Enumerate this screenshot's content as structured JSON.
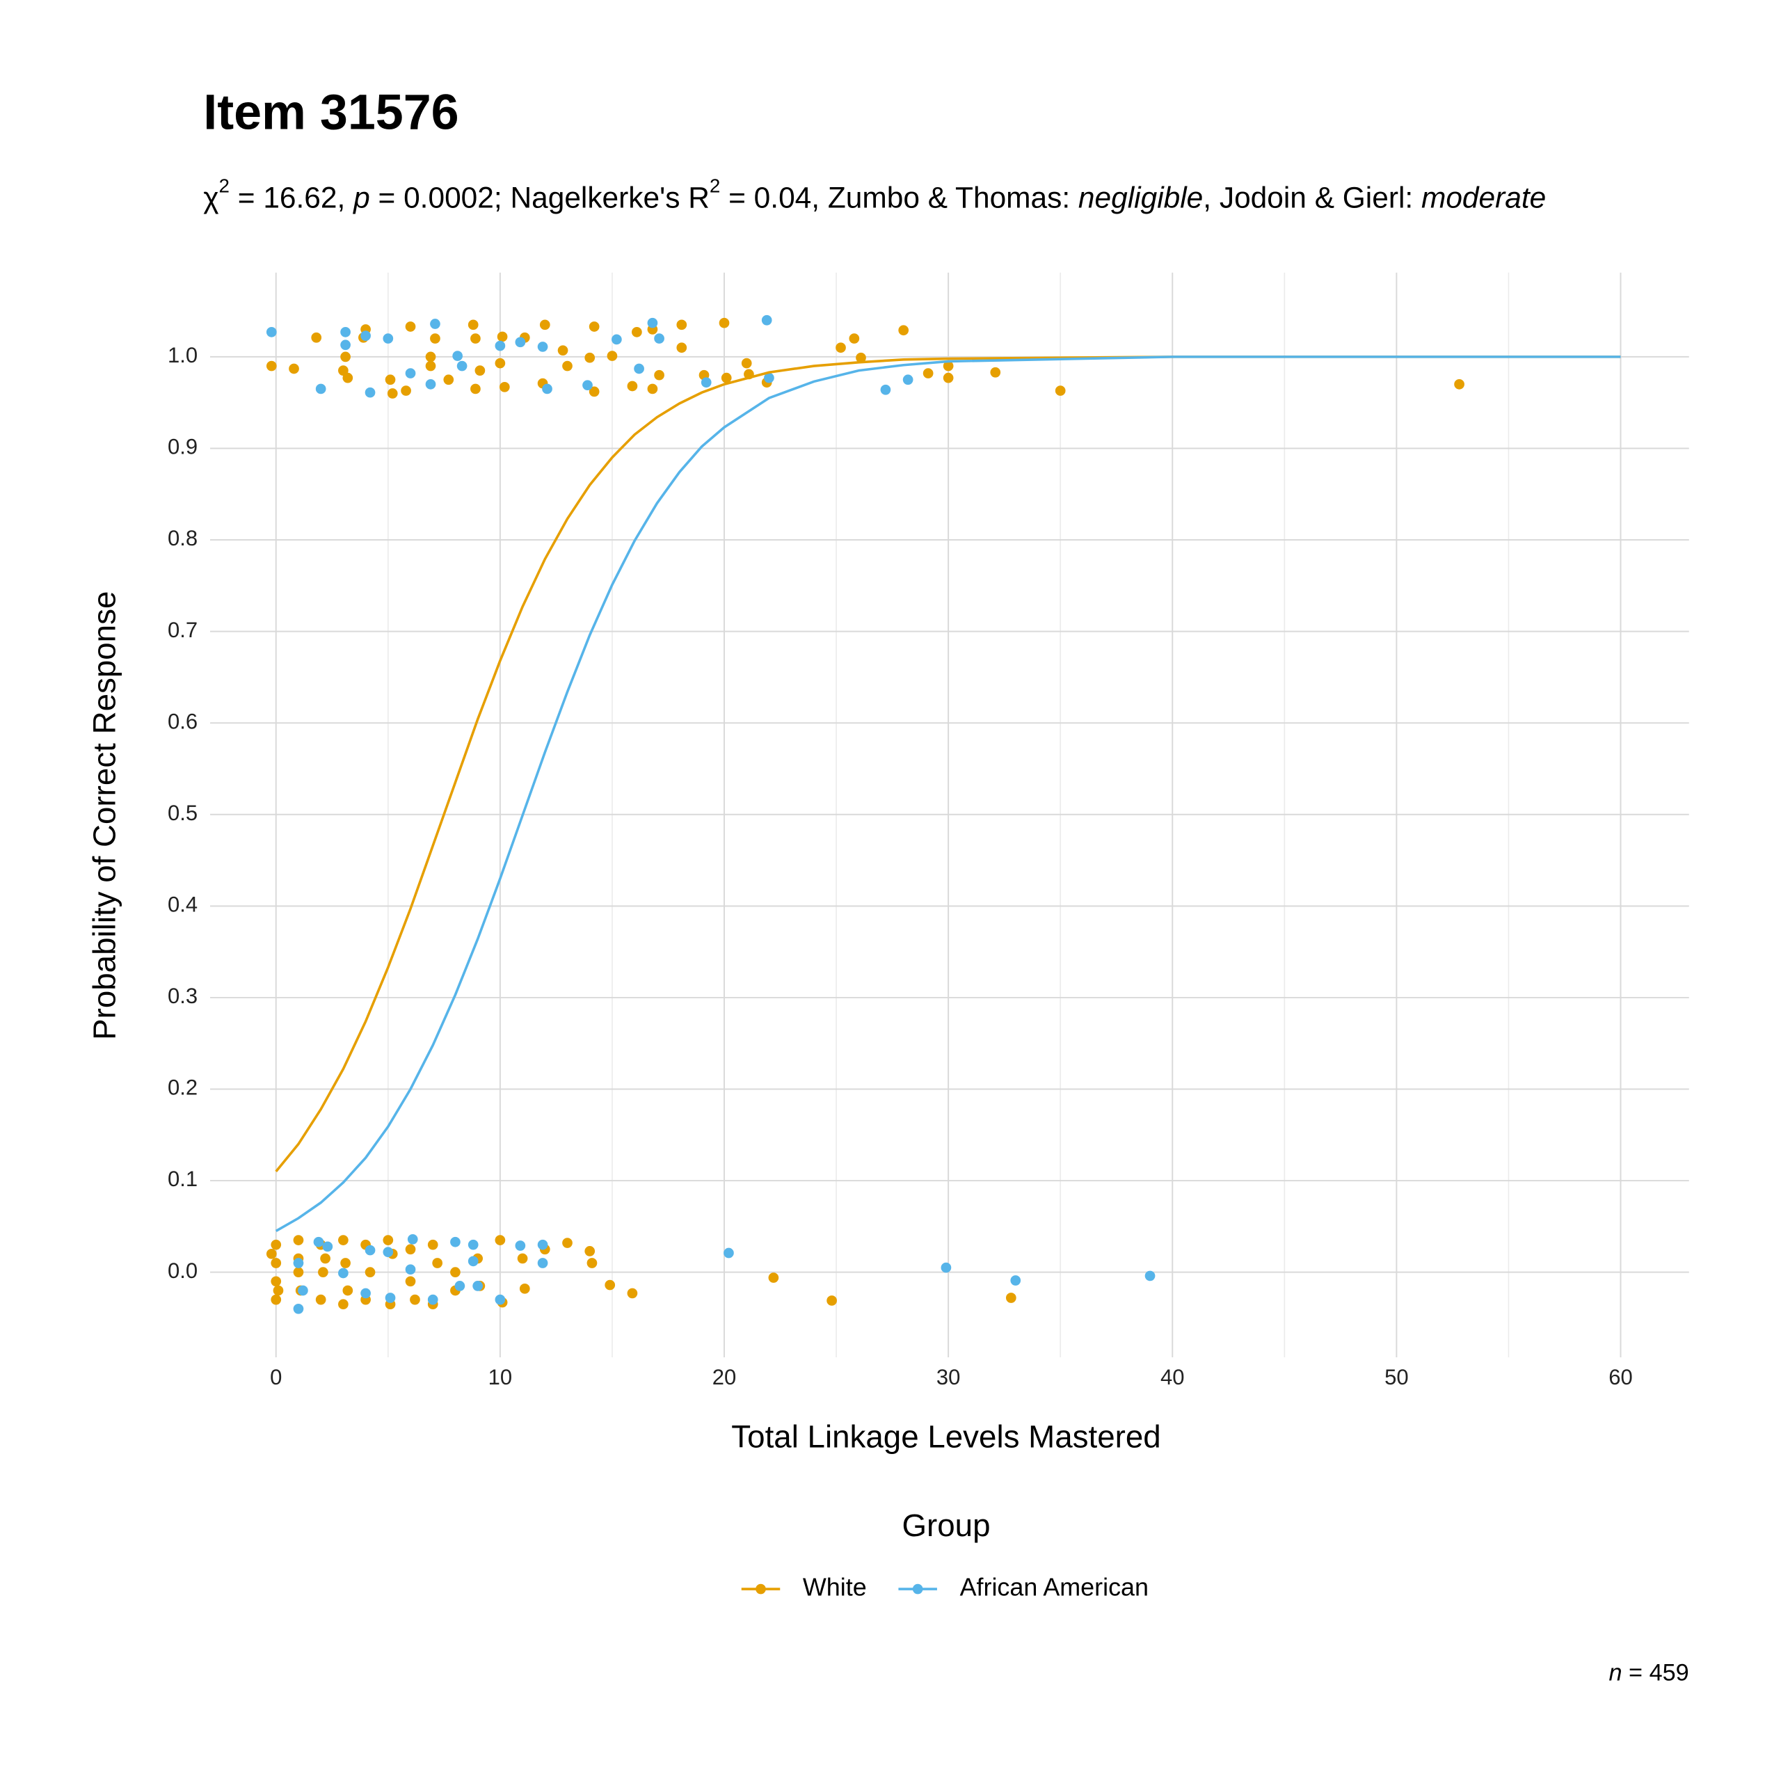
{
  "chart_data": {
    "type": "scatter",
    "title": "Item 31576",
    "subtitle_parts": [
      "χ",
      "2",
      " = 16.62, ",
      "p",
      " = 0.0002; Nagelkerke's R",
      "2",
      " = 0.04, Zumbo & Thomas: ",
      "negligible",
      ", Jodoin & Gierl: ",
      "moderate"
    ],
    "x_label": "Total Linkage Levels Mastered",
    "y_label": "Probability of Correct Response",
    "legend_title": "Group",
    "legend_position": "bottom",
    "caption_parts": [
      "n",
      " = 459"
    ],
    "grid": true,
    "xlim": [
      -2.94,
      63.05
    ],
    "ylim": [
      -0.093,
      1.092
    ],
    "xticks": [
      0,
      10,
      20,
      30,
      40,
      50,
      60
    ],
    "x_minor_ticks": [
      5,
      15,
      25,
      35,
      45,
      55
    ],
    "yticks": [
      {
        "value": 0,
        "label": "0.0"
      },
      0.1,
      0.2,
      0.3,
      0.4,
      0.5,
      0.6,
      0.7,
      0.8,
      0.9,
      {
        "value": 1,
        "label": "1.0"
      }
    ],
    "series": [
      {
        "name": "White",
        "color": "#e69f00",
        "x": [
          0,
          1,
          2,
          3,
          4,
          5,
          6,
          7,
          8,
          9,
          10,
          11,
          12,
          13,
          14,
          15,
          16,
          17,
          18,
          19,
          20,
          22,
          24,
          26,
          28,
          30,
          40,
          50,
          60
        ],
        "values": [
          0.11,
          0.14,
          0.178,
          0.222,
          0.274,
          0.333,
          0.397,
          0.466,
          0.535,
          0.604,
          0.668,
          0.727,
          0.779,
          0.823,
          0.86,
          0.89,
          0.915,
          0.934,
          0.949,
          0.961,
          0.97,
          0.983,
          0.99,
          0.994,
          0.997,
          0.998,
          1.0,
          1.0,
          1.0
        ],
        "points": {
          "x": [
            -0.2,
            0.8,
            1.8,
            3,
            3.1,
            3.2,
            3.9,
            4,
            5.1,
            5.2,
            5.8,
            6,
            6.9,
            6.9,
            7.1,
            7.7,
            8.8,
            8.9,
            8.9,
            9.1,
            10,
            10.1,
            10.2,
            11.1,
            11.9,
            12,
            12.8,
            13,
            14,
            14.2,
            14.2,
            15,
            15.9,
            16.1,
            16.8,
            16.8,
            17.1,
            18.1,
            18.1,
            19.1,
            20,
            20.1,
            21,
            21.1,
            21.9,
            25.2,
            25.8,
            26.1,
            28,
            29.1,
            30,
            30,
            32.1,
            35,
            52.8,
            0,
            0,
            0,
            0,
            -0.2,
            0.1,
            1,
            1,
            1.1,
            1,
            2,
            2,
            2.1,
            2.2,
            3,
            3,
            3.1,
            3.2,
            4,
            4,
            4.2,
            5,
            5.1,
            5.2,
            6,
            6,
            6.2,
            7,
            7,
            7.2,
            8,
            8,
            9,
            9.1,
            10,
            10.1,
            11,
            11.1,
            12,
            13,
            14,
            14.1,
            14.9,
            15.9,
            22.2,
            24.8,
            32.8
          ],
          "y": [
            0.99,
            0.987,
            1.021,
            0.985,
            1.0,
            0.977,
            1.021,
            1.03,
            0.975,
            0.96,
            0.963,
            1.033,
            0.99,
            1.0,
            1.02,
            0.975,
            1.035,
            1.02,
            0.965,
            0.985,
            0.993,
            1.022,
            0.967,
            1.021,
            0.971,
            1.035,
            1.007,
            0.99,
            0.999,
            1.033,
            0.962,
            1.001,
            0.968,
            1.027,
            1.03,
            0.965,
            0.98,
            1.035,
            1.01,
            0.98,
            1.037,
            0.977,
            0.993,
            0.981,
            0.972,
            1.01,
            1.02,
            0.999,
            1.029,
            0.982,
            0.977,
            0.99,
            0.983,
            0.963,
            0.97,
            0.03,
            0.01,
            -0.01,
            -0.03,
            0.02,
            -0.02,
            0.035,
            0.0,
            -0.02,
            0.015,
            0.03,
            -0.03,
            0.0,
            0.015,
            0.035,
            -0.035,
            0.01,
            -0.02,
            0.03,
            -0.03,
            0.0,
            0.035,
            -0.035,
            0.02,
            -0.01,
            0.025,
            -0.03,
            0.03,
            -0.035,
            0.01,
            0.0,
            -0.02,
            0.015,
            -0.015,
            0.035,
            -0.033,
            0.015,
            -0.018,
            0.025,
            0.032,
            0.023,
            0.01,
            -0.014,
            -0.023,
            -0.006,
            -0.031,
            -0.028
          ]
        }
      },
      {
        "name": "African American",
        "color": "#56b4e9",
        "x": [
          0,
          1,
          2,
          3,
          4,
          5,
          6,
          7,
          8,
          9,
          10,
          11,
          12,
          13,
          14,
          15,
          16,
          17,
          18,
          19,
          20,
          22,
          24,
          26,
          28,
          30,
          40,
          50,
          60
        ],
        "values": [
          0.045,
          0.059,
          0.076,
          0.098,
          0.125,
          0.159,
          0.2,
          0.248,
          0.303,
          0.364,
          0.43,
          0.499,
          0.568,
          0.634,
          0.696,
          0.751,
          0.799,
          0.84,
          0.874,
          0.902,
          0.923,
          0.955,
          0.973,
          0.985,
          0.991,
          0.995,
          1.0,
          1.0,
          1.0
        ],
        "points": {
          "x": [
            -0.2,
            2,
            3.1,
            3.1,
            4,
            4.2,
            5,
            6,
            6.9,
            7.1,
            8.1,
            8.3,
            10,
            10.9,
            11.9,
            12.1,
            13.9,
            15.2,
            16.2,
            16.8,
            17.1,
            19.2,
            21.9,
            22,
            27.2,
            28.2,
            1,
            1,
            1.2,
            1.9,
            2.3,
            3,
            4,
            4.2,
            5,
            5.1,
            6,
            6.1,
            7,
            8,
            8.2,
            8.8,
            8.8,
            9,
            10,
            10.9,
            11.9,
            11.9,
            20.2,
            29.9,
            33,
            39
          ],
          "y": [
            1.027,
            0.965,
            1.027,
            1.013,
            1.023,
            0.961,
            1.02,
            0.982,
            0.97,
            1.036,
            1.001,
            0.99,
            1.012,
            1.016,
            1.011,
            0.965,
            0.969,
            1.019,
            0.987,
            1.037,
            1.02,
            0.972,
            1.04,
            0.977,
            0.964,
            0.975,
            -0.04,
            0.01,
            -0.02,
            0.033,
            0.028,
            -0.001,
            -0.023,
            0.024,
            0.022,
            -0.028,
            0.003,
            0.036,
            -0.03,
            0.033,
            -0.015,
            0.03,
            0.012,
            -0.015,
            -0.03,
            0.029,
            0.03,
            0.01,
            0.021,
            0.005,
            -0.009,
            -0.004
          ]
        }
      }
    ]
  }
}
